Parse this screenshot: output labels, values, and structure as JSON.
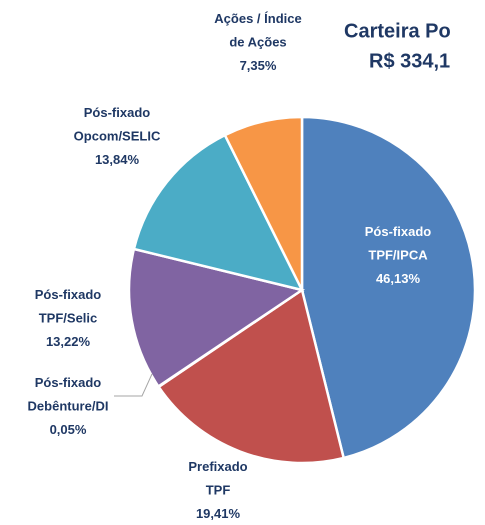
{
  "chart_data": {
    "type": "pie",
    "title": [
      "Carteira Po",
      "R$ 334,1"
    ],
    "categories": [
      [
        "Pós-fixado",
        "TPF/IPCA"
      ],
      [
        "Prefixado",
        "TPF"
      ],
      [
        "Pós-fixado",
        "Debênture/DI"
      ],
      [
        "Pós-fixado",
        "TPF/Selic"
      ],
      [
        "Pós-fixado",
        "Opcom/SELIC"
      ],
      [
        "Ações / Índice",
        "de Ações"
      ]
    ],
    "values": [
      46.13,
      19.41,
      0.05,
      13.22,
      13.84,
      7.35
    ],
    "value_labels": [
      "46,13%",
      "19,41%",
      "0,05%",
      "13,22%",
      "13,84%",
      "7,35%"
    ],
    "colors": [
      "#4f81bd",
      "#c0504d",
      "#9bbb59",
      "#8064a2",
      "#4bacc6",
      "#f79646"
    ]
  }
}
